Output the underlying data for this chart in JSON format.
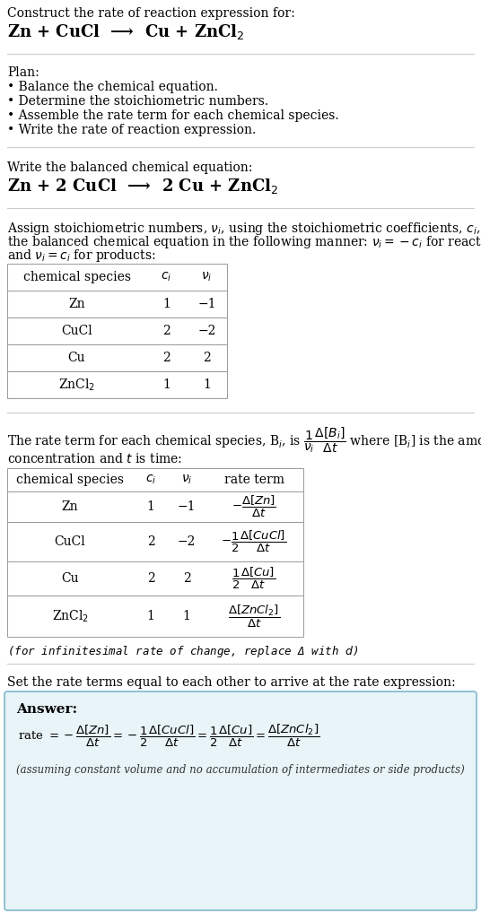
{
  "bg_color": "#ffffff",
  "text_color": "#000000",
  "section1_title": "Construct the rate of reaction expression for:",
  "section1_eq": "Zn + CuCl  ⟶  Cu + ZnCl$_2$",
  "section2_title": "Plan:",
  "section2_bullets": [
    "• Balance the chemical equation.",
    "• Determine the stoichiometric numbers.",
    "• Assemble the rate term for each chemical species.",
    "• Write the rate of reaction expression."
  ],
  "section3_title": "Write the balanced chemical equation:",
  "section3_eq": "Zn + 2 CuCl  ⟶  2 Cu + ZnCl$_2$",
  "section4_intro_1": "Assign stoichiometric numbers, $\\nu_i$, using the stoichiometric coefficients, $c_i$, from",
  "section4_intro_2": "the balanced chemical equation in the following manner: $\\nu_i = -c_i$ for reactants",
  "section4_intro_3": "and $\\nu_i = c_i$ for products:",
  "table1_headers": [
    "chemical species",
    "$c_i$",
    "$\\nu_i$"
  ],
  "table1_rows": [
    [
      "Zn",
      "1",
      "−1"
    ],
    [
      "CuCl",
      "2",
      "−2"
    ],
    [
      "Cu",
      "2",
      "2"
    ],
    [
      "ZnCl$_2$",
      "1",
      "1"
    ]
  ],
  "section5_intro_1": "The rate term for each chemical species, B$_i$, is $\\dfrac{1}{\\nu_i}\\dfrac{\\Delta[B_i]}{\\Delta t}$ where [B$_i$] is the amount",
  "section5_intro_2": "concentration and $t$ is time:",
  "table2_headers": [
    "chemical species",
    "$c_i$",
    "$\\nu_i$",
    "rate term"
  ],
  "table2_rows": [
    [
      "Zn",
      "1",
      "−1",
      "$-\\dfrac{\\Delta[Zn]}{\\Delta t}$"
    ],
    [
      "CuCl",
      "2",
      "−2",
      "$-\\dfrac{1}{2}\\dfrac{\\Delta[CuCl]}{\\Delta t}$"
    ],
    [
      "Cu",
      "2",
      "2",
      "$\\dfrac{1}{2}\\dfrac{\\Delta[Cu]}{\\Delta t}$"
    ],
    [
      "ZnCl$_2$",
      "1",
      "1",
      "$\\dfrac{\\Delta[ZnCl_2]}{\\Delta t}$"
    ]
  ],
  "section5_note": "(for infinitesimal rate of change, replace Δ with $d$)",
  "section6_intro": "Set the rate terms equal to each other to arrive at the rate expression:",
  "answer_label": "Answer:",
  "answer_eq": "rate $= -\\dfrac{\\Delta[Zn]}{\\Delta t} = -\\dfrac{1}{2}\\dfrac{\\Delta[CuCl]}{\\Delta t} = \\dfrac{1}{2}\\dfrac{\\Delta[Cu]}{\\Delta t} = \\dfrac{\\Delta[ZnCl_2]}{\\Delta t}$",
  "answer_note": "(assuming constant volume and no accumulation of intermediates or side products)",
  "answer_box_color": "#e8f4f8",
  "answer_box_border": "#7fb8cc",
  "line_color": "#cccccc",
  "table_border_color": "#999999"
}
